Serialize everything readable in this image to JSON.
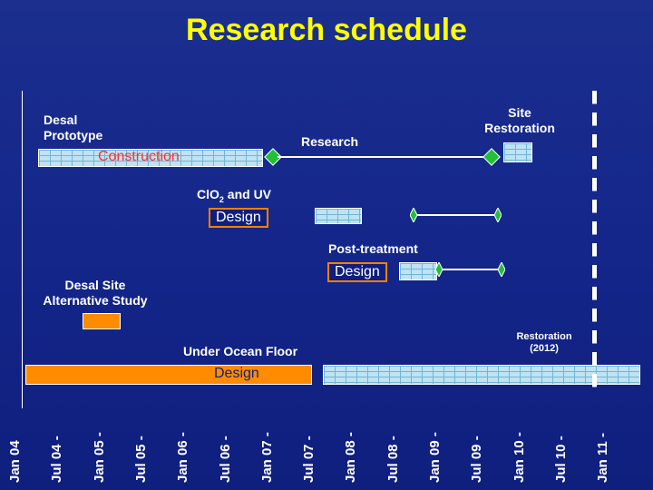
{
  "title": "Research schedule",
  "labels": {
    "desal_prototype": [
      "Desal",
      "Prototype"
    ],
    "research": "Research",
    "site_restoration": [
      "Site",
      "Restoration"
    ],
    "construction": "Construction",
    "clo2_uv": "ClO",
    "clo2_sub": "2",
    "clo2_rest": " and UV",
    "post_treatment": "Post-treatment",
    "desal_site": [
      "Desal Site",
      "Alternative Study"
    ],
    "under_ocean": "Under Ocean Floor",
    "restoration_2012": [
      "Restoration",
      "(2012)"
    ],
    "design": "Design"
  },
  "axis_ticks": [
    "Jan 04",
    "Jul 04 -",
    "Jan 05 -",
    "Jul 05 -",
    "Jan 06 -",
    "Jul 06 -",
    "Jan 07 -",
    "Jul 07 -",
    "Jan 08 -",
    "Jul 08 -",
    "Jan 09 -",
    "Jul 09 -",
    "Jan 10 -",
    "Jul 10 -",
    "Jan 11 -"
  ],
  "colors": {
    "background": "#14268a",
    "title": "#ffff00",
    "brick": "#bfe3f2",
    "design_border": "#ff7f00",
    "milestone": "#22c03a",
    "construction_text": "#ff3030"
  }
}
